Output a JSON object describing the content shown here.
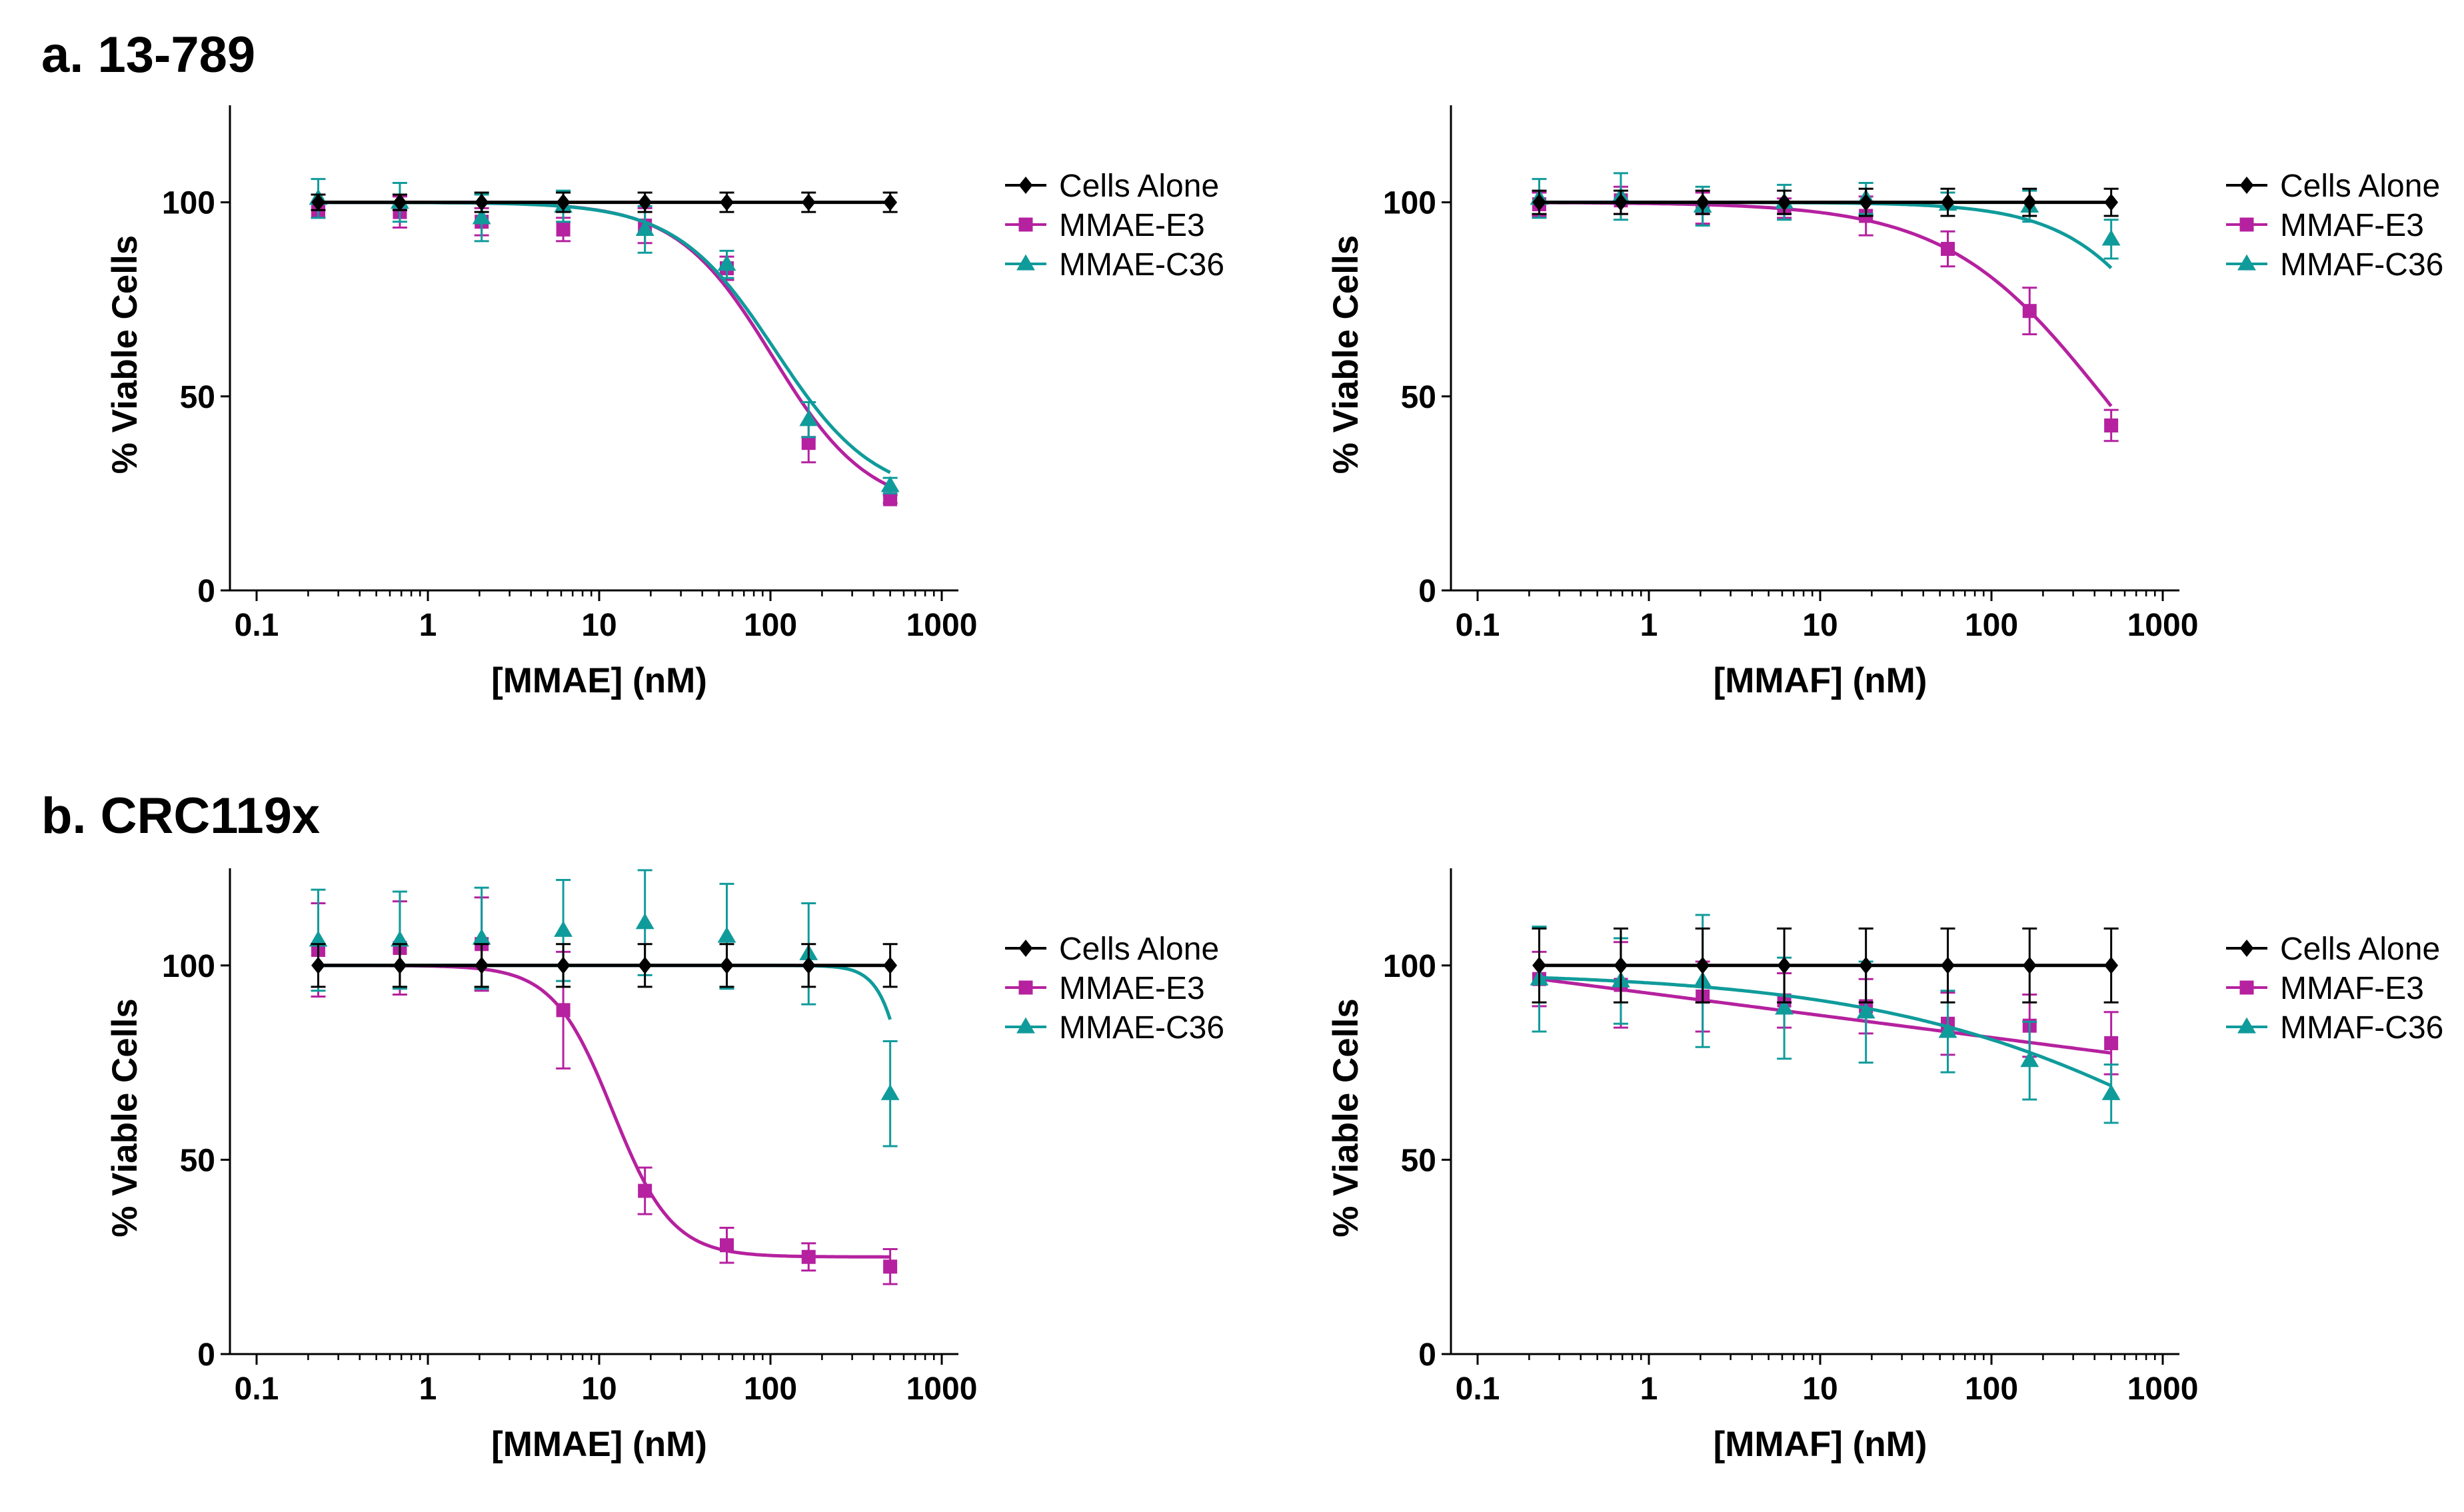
{
  "panels": {
    "a": {
      "label": "a. 13-789"
    },
    "b": {
      "label": "b. CRC119x"
    }
  },
  "colors": {
    "cells_alone": "#000000",
    "e3": "#b5219f",
    "c36": "#109b9b"
  },
  "chart_data": [
    {
      "id": "a-mmae",
      "panel": "a",
      "type": "line",
      "xscale": "log",
      "xlim": [
        0.1,
        1000
      ],
      "ylim": [
        0,
        125
      ],
      "x_ticks": [
        0.1,
        1,
        10,
        100,
        1000
      ],
      "x_tick_labels": [
        "0.1",
        "1",
        "10",
        "100",
        "1000"
      ],
      "y_ticks": [
        0,
        50,
        100
      ],
      "y_tick_labels": [
        "0",
        "50",
        "100"
      ],
      "xlabel": "[MMAE] (nM)",
      "ylabel": "% Viable Cells",
      "legend_position": "right",
      "series": [
        {
          "name": "Cells Alone",
          "marker": "diamond",
          "color": "#000000",
          "x": [
            0.229,
            0.686,
            2.06,
            6.17,
            18.5,
            55.6,
            167,
            500
          ],
          "y": [
            100,
            100,
            100,
            100,
            100,
            100,
            100,
            100
          ],
          "err": [
            2,
            2,
            2.5,
            2.5,
            2.5,
            2.5,
            2.5,
            2.5
          ],
          "fit": {
            "kind": "flat",
            "top": 100
          }
        },
        {
          "name": "MMAE-E3",
          "marker": "square",
          "color": "#b5219f",
          "x": [
            0.229,
            0.686,
            2.06,
            6.17,
            18.5,
            55.6,
            167,
            500
          ],
          "y": [
            98,
            97.5,
            95,
            93,
            94,
            83,
            38,
            23.5
          ],
          "err": [
            2,
            4,
            3.5,
            3,
            4.5,
            3,
            5,
            1
          ],
          "fit": {
            "kind": "logistic",
            "top": 100,
            "bottom": 20.5,
            "ec50": 103,
            "hill": 1.55
          }
        },
        {
          "name": "MMAE-C36",
          "marker": "triangle",
          "color": "#109b9b",
          "x": [
            0.229,
            0.686,
            2.06,
            6.17,
            18.5,
            55.6,
            167,
            500
          ],
          "y": [
            101,
            100,
            96,
            99,
            93,
            84,
            44,
            27
          ],
          "err": [
            5,
            5,
            6,
            4,
            6,
            3.5,
            4.5,
            2
          ],
          "fit": {
            "kind": "logistic",
            "top": 100,
            "bottom": 23.5,
            "ec50": 107,
            "hill": 1.5
          }
        }
      ]
    },
    {
      "id": "a-mmaf",
      "panel": "a",
      "type": "line",
      "xscale": "log",
      "xlim": [
        0.1,
        1000
      ],
      "ylim": [
        0,
        125
      ],
      "x_ticks": [
        0.1,
        1,
        10,
        100,
        1000
      ],
      "x_tick_labels": [
        "0.1",
        "1",
        "10",
        "100",
        "1000"
      ],
      "y_ticks": [
        0,
        50,
        100
      ],
      "y_tick_labels": [
        "0",
        "50",
        "100"
      ],
      "xlabel": "[MMAF] (nM)",
      "ylabel": "% Viable Cells",
      "legend_position": "right",
      "series": [
        {
          "name": "Cells Alone",
          "marker": "diamond",
          "color": "#000000",
          "x": [
            0.229,
            0.686,
            2.06,
            6.17,
            18.5,
            55.6,
            167,
            500
          ],
          "y": [
            100,
            100,
            100,
            100,
            100,
            100,
            100,
            100
          ],
          "err": [
            3,
            3,
            3,
            3,
            3.5,
            3.5,
            3.5,
            3.5
          ],
          "fit": {
            "kind": "flat",
            "top": 100
          }
        },
        {
          "name": "MMAF-E3",
          "marker": "square",
          "color": "#b5219f",
          "x": [
            0.229,
            0.686,
            2.06,
            6.17,
            18.5,
            55.6,
            167,
            500
          ],
          "y": [
            99.5,
            100.5,
            98.5,
            98.5,
            96.5,
            88,
            72,
            42.5
          ],
          "err": [
            3,
            3.5,
            4,
            2.5,
            5,
            4.5,
            6,
            4
          ],
          "fit": {
            "kind": "logistic",
            "top": 100,
            "bottom": 0,
            "ec50": 450,
            "hill": 0.95
          }
        },
        {
          "name": "MMAF-C36",
          "marker": "triangle",
          "color": "#109b9b",
          "x": [
            0.229,
            0.686,
            2.06,
            6.17,
            18.5,
            55.6,
            167,
            500
          ],
          "y": [
            101,
            101.5,
            99,
            100,
            101,
            99.5,
            99,
            90.5
          ],
          "err": [
            5,
            6,
            5,
            4.5,
            4,
            3,
            4,
            5
          ],
          "fit": {
            "kind": "logistic",
            "top": 100,
            "bottom": 0,
            "ec50": 1700,
            "hill": 1.3
          }
        }
      ]
    },
    {
      "id": "b-mmae",
      "panel": "b",
      "type": "line",
      "xscale": "log",
      "xlim": [
        0.1,
        1000
      ],
      "ylim": [
        0,
        125
      ],
      "x_ticks": [
        0.1,
        1,
        10,
        100,
        1000
      ],
      "x_tick_labels": [
        "0.1",
        "1",
        "10",
        "100",
        "1000"
      ],
      "y_ticks": [
        0,
        50,
        100
      ],
      "y_tick_labels": [
        "0",
        "50",
        "100"
      ],
      "xlabel": "[MMAE] (nM)",
      "ylabel": "% Viable Cells",
      "legend_position": "right",
      "series": [
        {
          "name": "Cells Alone",
          "marker": "diamond",
          "color": "#000000",
          "x": [
            0.229,
            0.686,
            2.06,
            6.17,
            18.5,
            55.6,
            167,
            500
          ],
          "y": [
            100,
            100,
            100,
            100,
            100,
            100,
            100,
            100
          ],
          "err": [
            5.5,
            5.5,
            5.5,
            5.5,
            5.5,
            5.5,
            5.5,
            5.5
          ],
          "fit": {
            "kind": "flat",
            "top": 100
          }
        },
        {
          "name": "MMAE-E3",
          "marker": "square",
          "color": "#b5219f",
          "x": [
            0.229,
            0.686,
            2.06,
            6.17,
            18.5,
            55.6,
            167,
            500
          ],
          "y": [
            104,
            104.5,
            105.5,
            88.5,
            42,
            28,
            25,
            22.5
          ],
          "err": [
            12,
            12,
            12,
            15,
            6,
            4.5,
            3.5,
            4.5
          ],
          "fit": {
            "kind": "logistic",
            "top": 100,
            "bottom": 25,
            "ec50": 12,
            "hill": 2.5
          }
        },
        {
          "name": "MMAE-C36",
          "marker": "triangle",
          "color": "#109b9b",
          "x": [
            0.229,
            0.686,
            2.06,
            6.17,
            18.5,
            55.6,
            167,
            500
          ],
          "y": [
            106.5,
            106.5,
            107,
            109,
            111,
            107.5,
            103,
            67
          ],
          "err": [
            13,
            12.5,
            13,
            13,
            13.5,
            13.5,
            13,
            13.5
          ],
          "fit": {
            "kind": "logistic",
            "top": 100,
            "bottom": 0,
            "ec50": 720,
            "hill": 5
          }
        }
      ]
    },
    {
      "id": "b-mmaf",
      "panel": "b",
      "type": "line",
      "xscale": "log",
      "xlim": [
        0.1,
        1000
      ],
      "ylim": [
        0,
        125
      ],
      "x_ticks": [
        0.1,
        1,
        10,
        100,
        1000
      ],
      "x_tick_labels": [
        "0.1",
        "1",
        "10",
        "100",
        "1000"
      ],
      "y_ticks": [
        0,
        50,
        100
      ],
      "y_tick_labels": [
        "0",
        "50",
        "100"
      ],
      "xlabel": "[MMAF] (nM)",
      "ylabel": "% Viable Cells",
      "legend_position": "right",
      "series": [
        {
          "name": "Cells Alone",
          "marker": "diamond",
          "color": "#000000",
          "x": [
            0.229,
            0.686,
            2.06,
            6.17,
            18.5,
            55.6,
            167,
            500
          ],
          "y": [
            100,
            100,
            100,
            100,
            100,
            100,
            100,
            100
          ],
          "err": [
            9.5,
            9.5,
            9.5,
            9.5,
            9.5,
            9.5,
            9.5,
            9.5
          ],
          "fit": {
            "kind": "flat",
            "top": 100
          }
        },
        {
          "name": "MMAF-E3",
          "marker": "square",
          "color": "#b5219f",
          "x": [
            0.229,
            0.686,
            2.06,
            6.17,
            18.5,
            55.6,
            167,
            500
          ],
          "y": [
            96.5,
            95,
            92,
            91,
            89.5,
            85,
            84.5,
            80
          ],
          "err": [
            7,
            11,
            9,
            7,
            7,
            8,
            8,
            8
          ],
          "fit": {
            "kind": "linearlog",
            "y_at_first": 96.5,
            "slope_per_decade": -5.7
          }
        },
        {
          "name": "MMAF-C36",
          "marker": "triangle",
          "color": "#109b9b",
          "x": [
            0.229,
            0.686,
            2.06,
            6.17,
            18.5,
            55.6,
            167,
            500
          ],
          "y": [
            96.5,
            96,
            96,
            89,
            88,
            83,
            75.5,
            67
          ],
          "err": [
            13.5,
            11,
            17,
            13,
            13,
            10.5,
            10,
            7.5
          ],
          "fit": {
            "kind": "logistic",
            "top": 98.5,
            "bottom": 0,
            "ec50": 3800,
            "hill": 0.42
          }
        }
      ]
    }
  ]
}
